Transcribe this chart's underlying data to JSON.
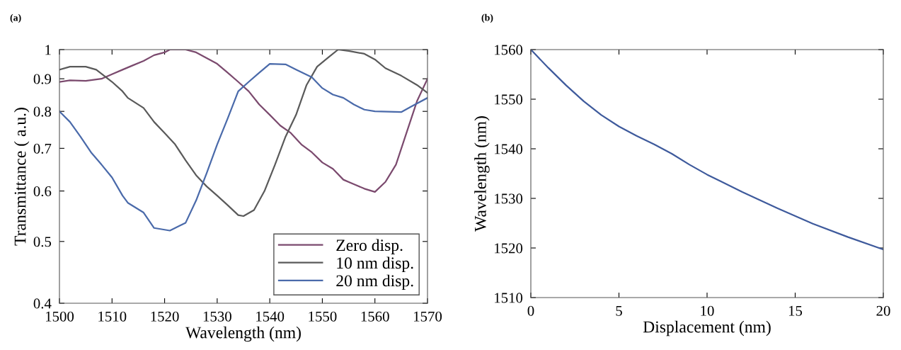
{
  "chart_data": [
    {
      "type": "line",
      "title": "(a)",
      "xlabel": "Wavelength (nm)",
      "ylabel": "Transmittance ( a.u.)",
      "log": "y",
      "xlim": [
        1500,
        1570
      ],
      "xticks": [
        1500,
        1510,
        1520,
        1530,
        1540,
        1550,
        1560,
        1570
      ],
      "ylim": [
        0.4,
        1
      ],
      "yticks": [
        0.4,
        0.5,
        0.6,
        0.7,
        0.8,
        0.9,
        1
      ],
      "grid": false,
      "legend": "bottom right",
      "line_style": "solid",
      "marker": "none",
      "series": [
        {
          "name": "Zero disp.",
          "color": "#7b4a6e",
          "x": [
            1500,
            1502,
            1505,
            1508,
            1510,
            1512,
            1514,
            1516,
            1518,
            1520,
            1521,
            1524,
            1526,
            1528,
            1530,
            1532,
            1534,
            1536,
            1538,
            1540,
            1542,
            1544,
            1546,
            1548,
            1550,
            1552,
            1554,
            1556,
            1558,
            1560,
            1562,
            1564,
            1566,
            1568,
            1570
          ],
          "values": [
            0.89,
            0.895,
            0.893,
            0.9,
            0.915,
            0.93,
            0.945,
            0.96,
            0.98,
            0.99,
            1.0,
            1.0,
            0.99,
            0.97,
            0.95,
            0.92,
            0.89,
            0.86,
            0.82,
            0.79,
            0.76,
            0.74,
            0.71,
            0.69,
            0.665,
            0.65,
            0.625,
            0.615,
            0.605,
            0.598,
            0.62,
            0.66,
            0.74,
            0.83,
            0.9
          ]
        },
        {
          "name": "10 nm disp.",
          "color": "#5a5a5a",
          "x": [
            1500,
            1502,
            1505,
            1507,
            1510,
            1512,
            1513,
            1516,
            1518,
            1520,
            1522,
            1524,
            1526,
            1528,
            1530,
            1532,
            1534,
            1535,
            1537,
            1539,
            1541,
            1543,
            1545,
            1547,
            1549,
            1551,
            1553,
            1555,
            1558,
            1560,
            1562,
            1565,
            1568,
            1570
          ],
          "values": [
            0.93,
            0.94,
            0.94,
            0.93,
            0.89,
            0.86,
            0.84,
            0.81,
            0.77,
            0.74,
            0.71,
            0.67,
            0.635,
            0.61,
            0.59,
            0.57,
            0.55,
            0.548,
            0.56,
            0.6,
            0.66,
            0.73,
            0.79,
            0.88,
            0.94,
            0.97,
            1.0,
            0.995,
            0.985,
            0.965,
            0.935,
            0.91,
            0.88,
            0.855
          ]
        },
        {
          "name": "20 nm disp.",
          "color": "#4a6aaa",
          "x": [
            1500,
            1502,
            1504,
            1506,
            1508,
            1510,
            1512,
            1513,
            1516,
            1518,
            1521,
            1524,
            1526,
            1528,
            1530,
            1532,
            1534,
            1536,
            1538,
            1540,
            1543,
            1545,
            1548,
            1550,
            1552,
            1554,
            1556,
            1558,
            1560,
            1565,
            1567,
            1570
          ],
          "values": [
            0.8,
            0.77,
            0.73,
            0.69,
            0.66,
            0.63,
            0.59,
            0.575,
            0.555,
            0.525,
            0.52,
            0.535,
            0.58,
            0.64,
            0.71,
            0.78,
            0.86,
            0.89,
            0.92,
            0.95,
            0.948,
            0.93,
            0.905,
            0.87,
            0.85,
            0.84,
            0.82,
            0.805,
            0.8,
            0.798,
            0.815,
            0.84
          ]
        }
      ]
    },
    {
      "type": "line",
      "title": "(b)",
      "xlabel": "Displacement (nm)",
      "ylabel": "Wavelength (nm)",
      "xlim": [
        0,
        20
      ],
      "xticks": [
        0,
        5,
        10,
        15,
        20
      ],
      "ylim": [
        1510,
        1560
      ],
      "yticks": [
        1510,
        1520,
        1530,
        1540,
        1550,
        1560
      ],
      "grid": false,
      "line_style": "solid",
      "marker": "none",
      "series": [
        {
          "color": "#3e5a9c",
          "x": [
            0,
            1,
            2,
            3,
            4,
            5,
            6,
            7,
            8,
            9,
            10,
            12,
            14,
            16,
            18,
            20
          ],
          "values": [
            1560,
            1556.3,
            1552.8,
            1549.6,
            1546.8,
            1544.5,
            1542.6,
            1540.9,
            1539,
            1536.8,
            1534.8,
            1531.3,
            1528,
            1524.9,
            1522.2,
            1519.7
          ]
        }
      ]
    }
  ]
}
